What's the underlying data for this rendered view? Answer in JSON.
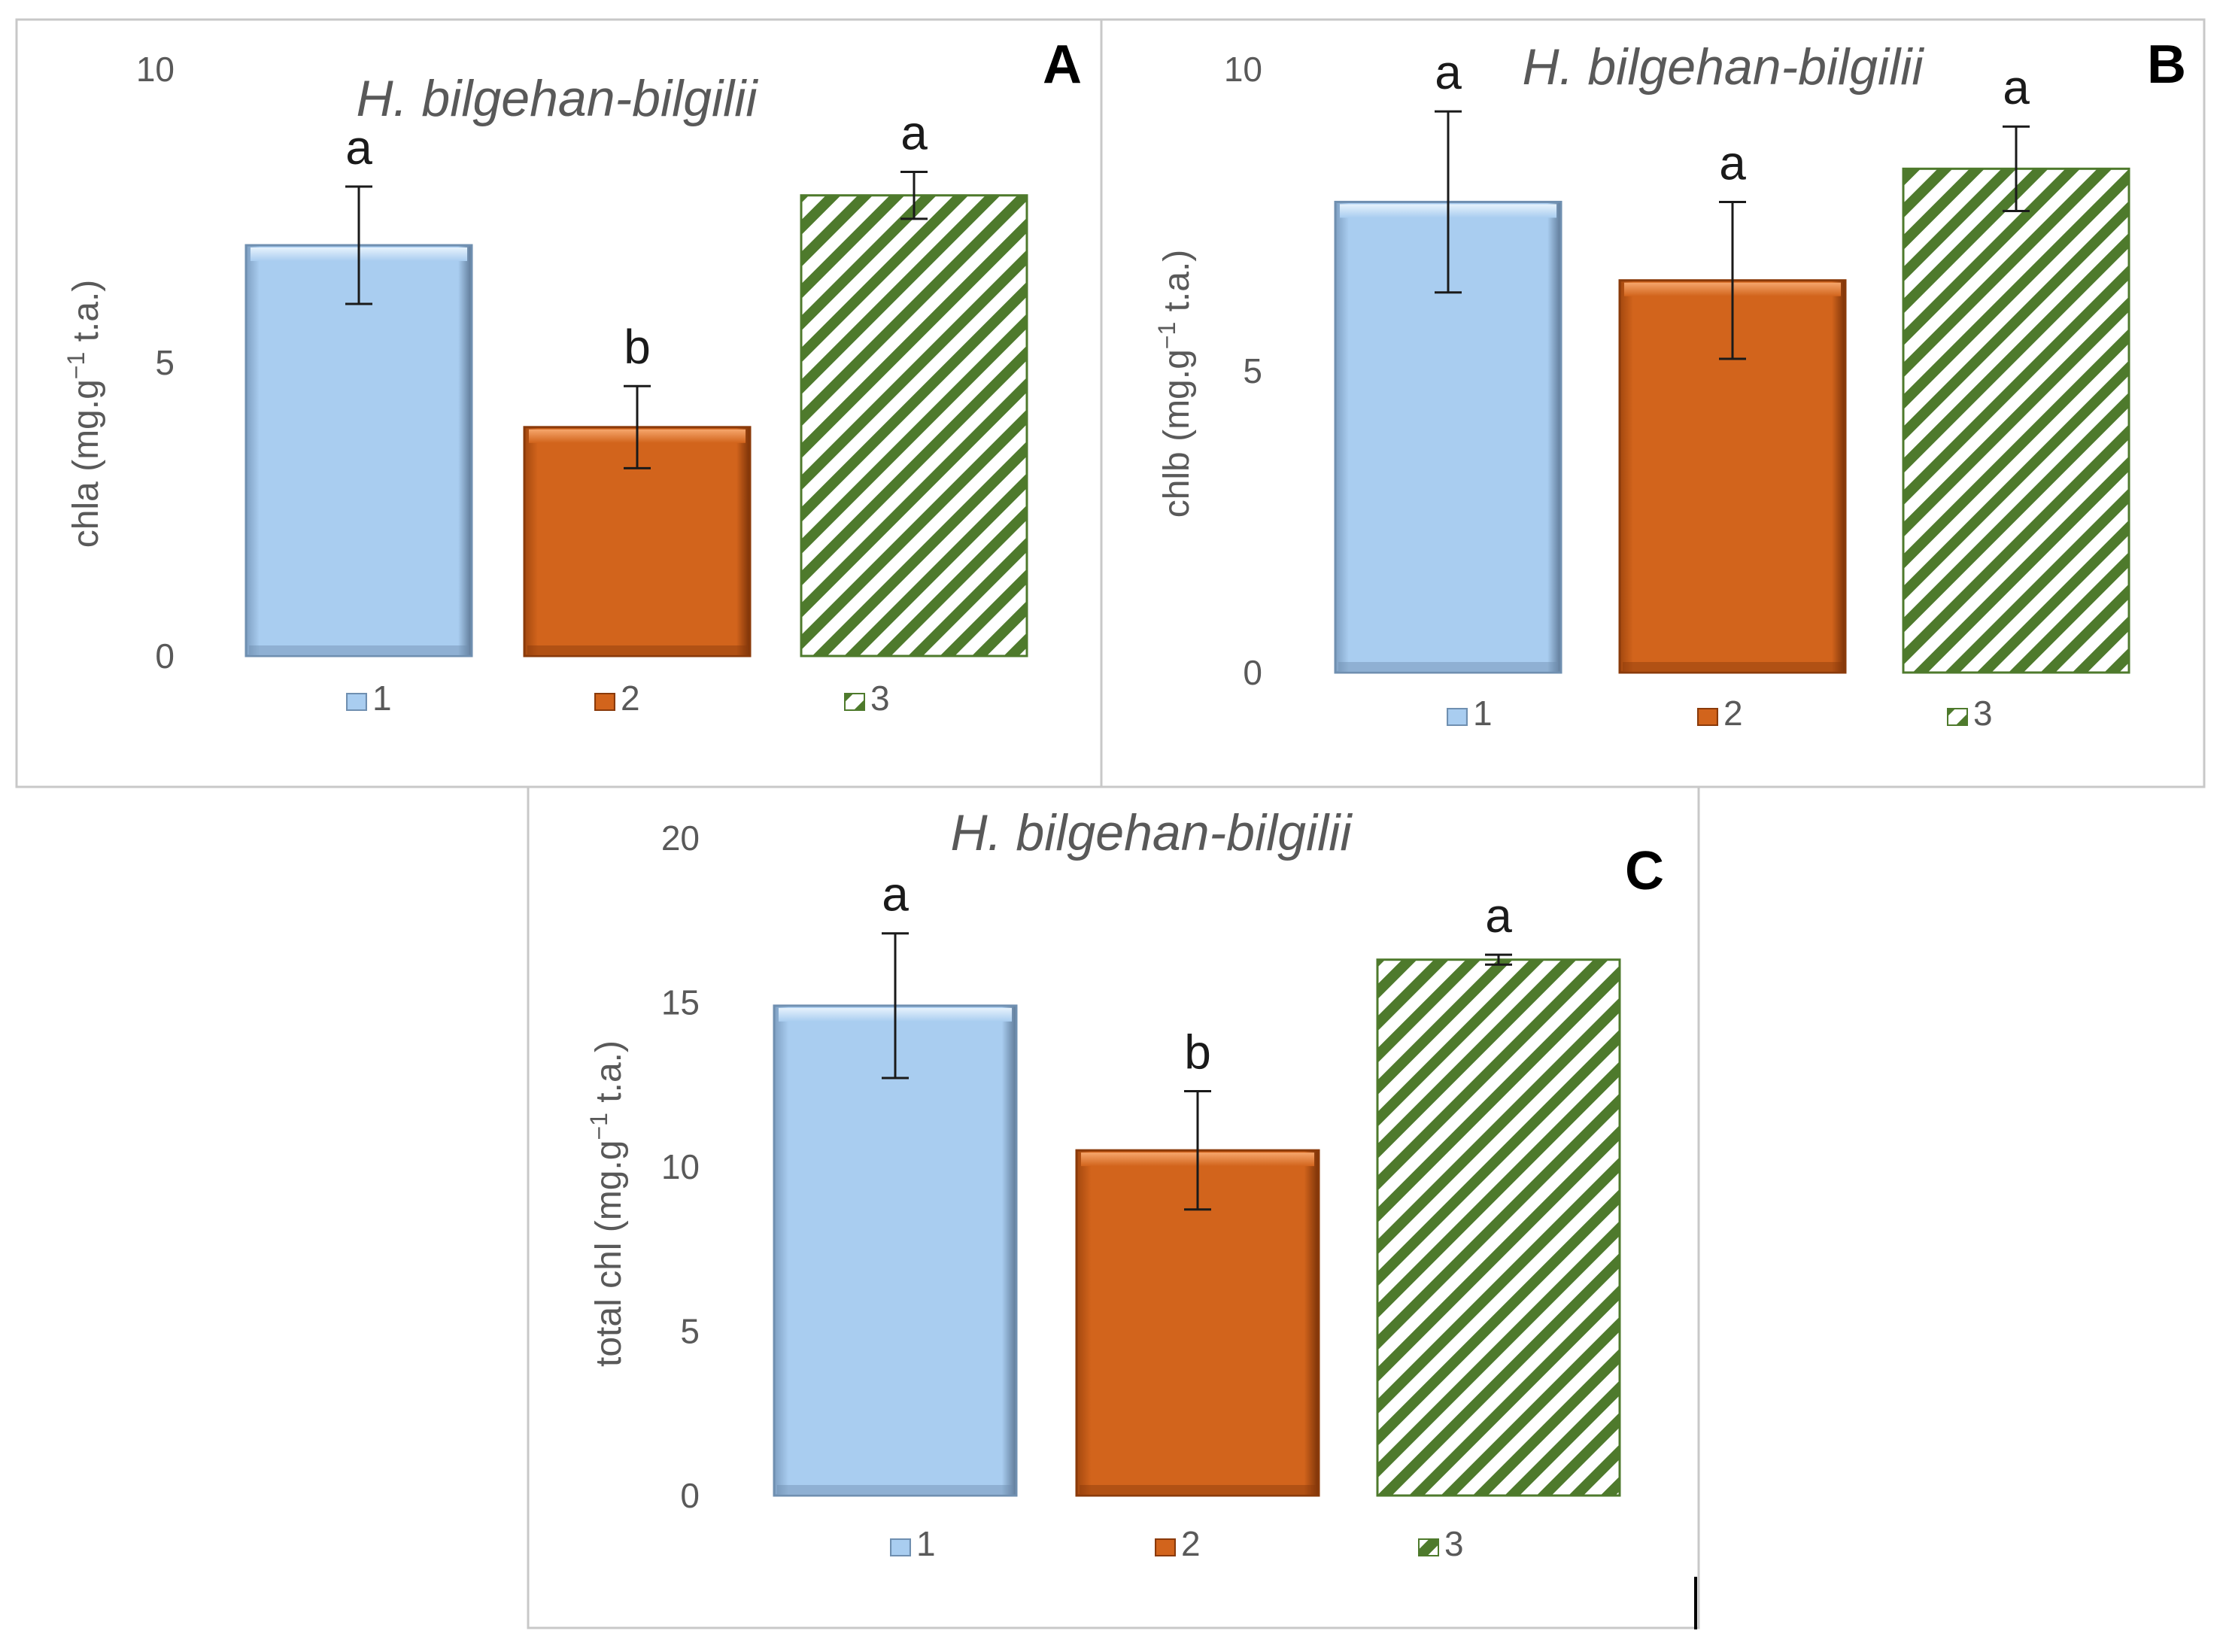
{
  "colors": {
    "series1": "#a9cdf0",
    "series1_edge": "#6f8fb0",
    "series2": "#d2641c",
    "series2_edge": "#8a3a0a",
    "series3_stripe": "#4e7a2c",
    "axis_text": "#595959",
    "title_text": "#595959",
    "frame": "#c8c8c8"
  },
  "chart_data": [
    {
      "type": "bar",
      "panel_label": "A",
      "title": "H. bilgehan-bilgilii",
      "ylabel_main": "chla (mg.g",
      "ylabel_sup": "−1",
      "ylabel_tail": " t.a.)",
      "categories": [
        "1",
        "2",
        "3"
      ],
      "values": [
        7.0,
        3.9,
        7.85
      ],
      "errors": [
        1.0,
        0.7,
        0.4
      ],
      "significance": [
        "a",
        "b",
        "a"
      ],
      "ylim": [
        0,
        10
      ],
      "yticks": [
        "0",
        "5",
        "10"
      ],
      "ytick_values": [
        0,
        5,
        10
      ]
    },
    {
      "type": "bar",
      "panel_label": "B",
      "title": "H. bilgehan-bilgilii",
      "ylabel_main": "chlb (mg.g",
      "ylabel_sup": "−1",
      "ylabel_tail": " t.a.)",
      "categories": [
        "1",
        "2",
        "3"
      ],
      "values": [
        7.8,
        6.5,
        8.35
      ],
      "errors": [
        1.5,
        1.3,
        0.7
      ],
      "significance": [
        "a",
        "a",
        "a"
      ],
      "ylim": [
        0,
        10
      ],
      "yticks": [
        "0",
        "5",
        "10"
      ],
      "ytick_values": [
        0,
        5,
        10
      ]
    },
    {
      "type": "bar",
      "panel_label": "C",
      "title": "H. bilgehan-bilgilii",
      "ylabel_main": "total chl (mg.g",
      "ylabel_sup": "−1",
      "ylabel_tail": " t.a.)",
      "categories": [
        "1",
        "2",
        "3"
      ],
      "values": [
        14.9,
        10.5,
        16.3
      ],
      "errors": [
        2.2,
        1.8,
        0.15
      ],
      "significance": [
        "a",
        "b",
        "a"
      ],
      "ylim": [
        0,
        20
      ],
      "yticks": [
        "0",
        "5",
        "10",
        "15",
        "20"
      ],
      "ytick_values": [
        0,
        5,
        10,
        15,
        20
      ]
    }
  ]
}
